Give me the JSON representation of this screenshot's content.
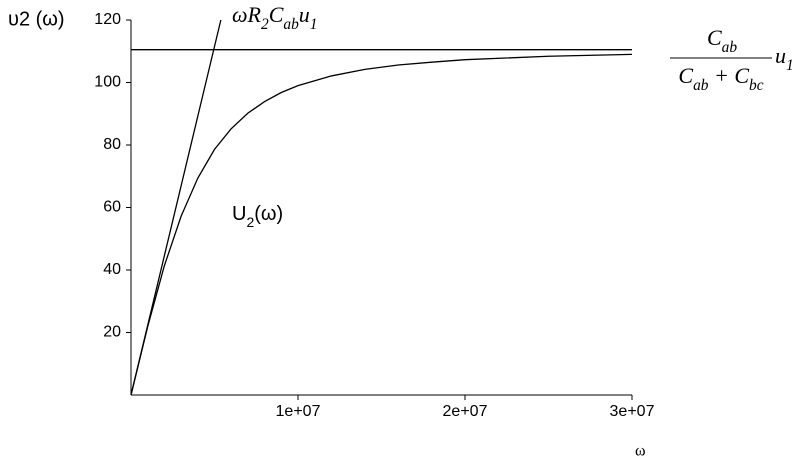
{
  "chart_data": {
    "type": "line",
    "ylabel": "υ2 (ω)",
    "xlabel": "ω",
    "xlim": [
      0,
      30000000
    ],
    "ylim": [
      0,
      120
    ],
    "xticks": [
      {
        "value": 10000000,
        "label": "1e+07"
      },
      {
        "value": 20000000,
        "label": "2e+07"
      },
      {
        "value": 30000000,
        "label": "3e+07"
      }
    ],
    "yticks": [
      20,
      40,
      60,
      80,
      100,
      120
    ],
    "series": [
      {
        "label": [
          "U",
          "2",
          "(ω)"
        ],
        "color": "#000000",
        "x": [
          0,
          1000000,
          2000000,
          3000000,
          4000000,
          5000000,
          6000000,
          7000000,
          8000000,
          9000000,
          10000000,
          12000000,
          14000000,
          16000000,
          18000000,
          20000000,
          25000000,
          30000000
        ],
        "values": [
          0,
          21.9,
          41.4,
          57.2,
          69.4,
          78.6,
          85.2,
          90.2,
          93.9,
          96.8,
          99.0,
          102.1,
          104.2,
          105.6,
          106.5,
          107.3,
          108.4,
          109.0
        ]
      },
      {
        "label": [
          "ωR",
          "2",
          "C",
          "ab",
          "u",
          "1"
        ],
        "color": "#000000",
        "x": [
          0,
          5380000
        ],
        "values": [
          0,
          120
        ]
      },
      {
        "numerator": [
          "C",
          "ab"
        ],
        "denominator": [
          "C",
          "ab",
          " + C",
          "bc"
        ],
        "factor": [
          "u",
          "1"
        ],
        "color": "#000000",
        "x": [
          0,
          30000000
        ],
        "values": [
          110.5,
          110.5
        ]
      }
    ]
  }
}
